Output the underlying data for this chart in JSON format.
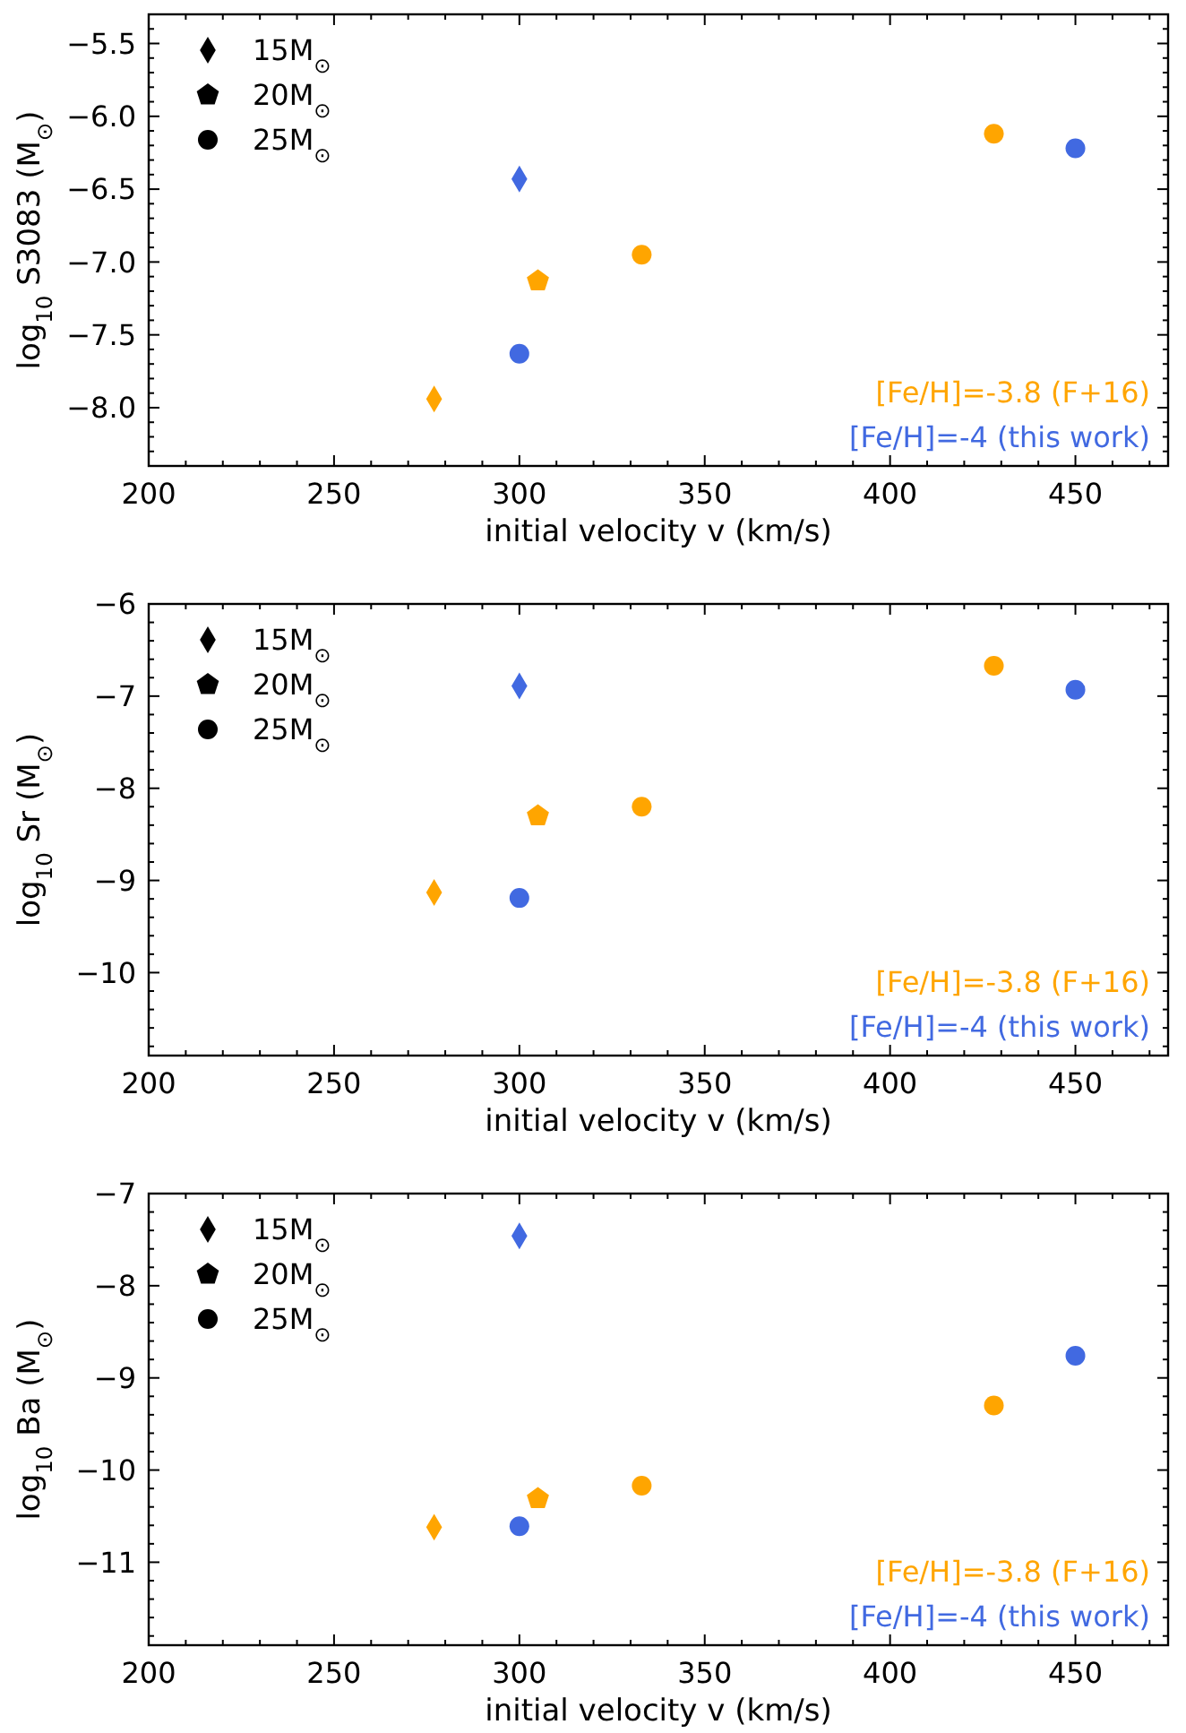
{
  "chart_data": [
    {
      "type": "scatter",
      "xlabel": "initial velocity v (km/s)",
      "ylabel": "log$_{10}$ S3083 (M$_{⊙}$)",
      "xlim": [
        200,
        475
      ],
      "ylim": [
        -8.4,
        -5.3
      ],
      "xticks": [
        200,
        {
          "value": 210,
          "label": null
        },
        {
          "value": 220,
          "label": null
        },
        {
          "value": 230,
          "label": null
        },
        {
          "value": 240,
          "label": null
        },
        250,
        {
          "value": 260,
          "label": null
        },
        {
          "value": 270,
          "label": null
        },
        {
          "value": 280,
          "label": null
        },
        {
          "value": 290,
          "label": null
        },
        300,
        {
          "value": 310,
          "label": null
        },
        {
          "value": 320,
          "label": null
        },
        {
          "value": 330,
          "label": null
        },
        {
          "value": 340,
          "label": null
        },
        350,
        {
          "value": 360,
          "label": null
        },
        {
          "value": 370,
          "label": null
        },
        {
          "value": 380,
          "label": null
        },
        {
          "value": 390,
          "label": null
        },
        400,
        {
          "value": 410,
          "label": null
        },
        {
          "value": 420,
          "label": null
        },
        {
          "value": 430,
          "label": null
        },
        {
          "value": 440,
          "label": null
        },
        450,
        {
          "value": 460,
          "label": null
        },
        {
          "value": 470,
          "label": null
        }
      ],
      "yticks": [
        {
          "value": -8.4,
          "label": null
        },
        {
          "value": -8.3,
          "label": null
        },
        {
          "value": -8.2,
          "label": null
        },
        {
          "value": -8.1,
          "label": null
        },
        {
          "value": -8.0,
          "label": "−8.0"
        },
        {
          "value": -7.9,
          "label": null
        },
        {
          "value": -7.8,
          "label": null
        },
        {
          "value": -7.7,
          "label": null
        },
        {
          "value": -7.6,
          "label": null
        },
        {
          "value": -7.5,
          "label": "−7.5"
        },
        {
          "value": -7.4,
          "label": null
        },
        {
          "value": -7.3,
          "label": null
        },
        {
          "value": -7.2,
          "label": null
        },
        {
          "value": -7.1,
          "label": null
        },
        {
          "value": -7.0,
          "label": "−7.0"
        },
        {
          "value": -6.9,
          "label": null
        },
        {
          "value": -6.8,
          "label": null
        },
        {
          "value": -6.7,
          "label": null
        },
        {
          "value": -6.6,
          "label": null
        },
        {
          "value": -6.5,
          "label": "−6.5"
        },
        {
          "value": -6.4,
          "label": null
        },
        {
          "value": -6.3,
          "label": null
        },
        {
          "value": -6.2,
          "label": null
        },
        {
          "value": -6.1,
          "label": null
        },
        {
          "value": -6.0,
          "label": "−6.0"
        },
        {
          "value": -5.9,
          "label": null
        },
        {
          "value": -5.8,
          "label": null
        },
        {
          "value": -5.7,
          "label": null
        },
        {
          "value": -5.6,
          "label": null
        },
        {
          "value": -5.5,
          "label": "−5.5"
        },
        {
          "value": -5.4,
          "label": null
        },
        {
          "value": -5.3,
          "label": null
        }
      ],
      "annotations": [
        "15M$_{⊙}$",
        "20M$_{⊙}$",
        "25M$_{⊙}$",
        "[Fe/H]=-3.8 (F+16)",
        "[Fe/H]=-4 (this work)"
      ],
      "series": [
        {
          "marker": "diamond",
          "x": [
            277,
            300
          ],
          "values": [
            -7.94,
            -6.43
          ],
          "colors": [
            "#ffa500",
            "#4169e1"
          ]
        },
        {
          "x": [
            305
          ],
          "values": [
            -7.13
          ],
          "colors": [
            "#ffa500"
          ]
        },
        {
          "marker": "circle",
          "x": [
            333,
            428,
            300,
            450
          ],
          "values": [
            -6.95,
            -6.12,
            -7.63,
            -6.22
          ],
          "colors": [
            "#ffa500",
            "#ffa500",
            "#4169e1",
            "#4169e1"
          ]
        }
      ]
    },
    {
      "type": "scatter",
      "xlabel": "initial velocity v (km/s)",
      "ylabel": "log$_{10}$ Sr (M$_{⊙}$)",
      "xlim": [
        200,
        475
      ],
      "ylim": [
        -10.9,
        -6
      ],
      "xticks": [
        200,
        {
          "value": 210,
          "label": null
        },
        {
          "value": 220,
          "label": null
        },
        {
          "value": 230,
          "label": null
        },
        {
          "value": 240,
          "label": null
        },
        250,
        {
          "value": 260,
          "label": null
        },
        {
          "value": 270,
          "label": null
        },
        {
          "value": 280,
          "label": null
        },
        {
          "value": 290,
          "label": null
        },
        300,
        {
          "value": 310,
          "label": null
        },
        {
          "value": 320,
          "label": null
        },
        {
          "value": 330,
          "label": null
        },
        {
          "value": 340,
          "label": null
        },
        350,
        {
          "value": 360,
          "label": null
        },
        {
          "value": 370,
          "label": null
        },
        {
          "value": 380,
          "label": null
        },
        {
          "value": 390,
          "label": null
        },
        400,
        {
          "value": 410,
          "label": null
        },
        {
          "value": 420,
          "label": null
        },
        {
          "value": 430,
          "label": null
        },
        {
          "value": 440,
          "label": null
        },
        450,
        {
          "value": 460,
          "label": null
        },
        {
          "value": 470,
          "label": null
        }
      ],
      "yticks": [
        {
          "value": -10.8,
          "label": null
        },
        {
          "value": -10.6,
          "label": null
        },
        {
          "value": -10.4,
          "label": null
        },
        {
          "value": -10.2,
          "label": null
        },
        {
          "value": -10,
          "label": "−10"
        },
        {
          "value": -9.8,
          "label": null
        },
        {
          "value": -9.6,
          "label": null
        },
        {
          "value": -9.4,
          "label": null
        },
        {
          "value": -9.2,
          "label": null
        },
        {
          "value": -9,
          "label": "−9"
        },
        {
          "value": -8.8,
          "label": null
        },
        {
          "value": -8.6,
          "label": null
        },
        {
          "value": -8.4,
          "label": null
        },
        {
          "value": -8.2,
          "label": null
        },
        {
          "value": -8,
          "label": "−8"
        },
        {
          "value": -7.8,
          "label": null
        },
        {
          "value": -7.6,
          "label": null
        },
        {
          "value": -7.4,
          "label": null
        },
        {
          "value": -7.2,
          "label": null
        },
        {
          "value": -7,
          "label": "−7"
        },
        {
          "value": -6.8,
          "label": null
        },
        {
          "value": -6.6,
          "label": null
        },
        {
          "value": -6.4,
          "label": null
        },
        {
          "value": -6.2,
          "label": null
        },
        {
          "value": -6,
          "label": "−6"
        }
      ],
      "annotations": [
        "15M$_{⊙}$",
        "20M$_{⊙}$",
        "25M$_{⊙}$",
        "[Fe/H]=-3.8 (F+16)",
        "[Fe/H]=-4 (this work)"
      ],
      "series": [
        {
          "marker": "diamond",
          "x": [
            277,
            300
          ],
          "values": [
            -9.13,
            -6.89
          ],
          "colors": [
            "#ffa500",
            "#4169e1"
          ]
        },
        {
          "x": [
            305
          ],
          "values": [
            -8.3
          ],
          "colors": [
            "#ffa500"
          ]
        },
        {
          "marker": "circle",
          "x": [
            333,
            428,
            300,
            450
          ],
          "values": [
            -8.2,
            -6.67,
            -9.19,
            -6.93
          ],
          "colors": [
            "#ffa500",
            "#ffa500",
            "#4169e1",
            "#4169e1"
          ]
        }
      ]
    },
    {
      "type": "scatter",
      "xlabel": "initial velocity v (km/s)",
      "ylabel": "log$_{10}$ Ba (M$_{⊙}$)",
      "xlim": [
        200,
        475
      ],
      "ylim": [
        -11.9,
        -7
      ],
      "xticks": [
        200,
        {
          "value": 210,
          "label": null
        },
        {
          "value": 220,
          "label": null
        },
        {
          "value": 230,
          "label": null
        },
        {
          "value": 240,
          "label": null
        },
        250,
        {
          "value": 260,
          "label": null
        },
        {
          "value": 270,
          "label": null
        },
        {
          "value": 280,
          "label": null
        },
        {
          "value": 290,
          "label": null
        },
        300,
        {
          "value": 310,
          "label": null
        },
        {
          "value": 320,
          "label": null
        },
        {
          "value": 330,
          "label": null
        },
        {
          "value": 340,
          "label": null
        },
        350,
        {
          "value": 360,
          "label": null
        },
        {
          "value": 370,
          "label": null
        },
        {
          "value": 380,
          "label": null
        },
        {
          "value": 390,
          "label": null
        },
        400,
        {
          "value": 410,
          "label": null
        },
        {
          "value": 420,
          "label": null
        },
        {
          "value": 430,
          "label": null
        },
        {
          "value": 440,
          "label": null
        },
        450,
        {
          "value": 460,
          "label": null
        },
        {
          "value": 470,
          "label": null
        }
      ],
      "yticks": [
        {
          "value": -11.8,
          "label": null
        },
        {
          "value": -11.6,
          "label": null
        },
        {
          "value": -11.4,
          "label": null
        },
        {
          "value": -11.2,
          "label": null
        },
        {
          "value": -11,
          "label": "−11"
        },
        {
          "value": -10.8,
          "label": null
        },
        {
          "value": -10.6,
          "label": null
        },
        {
          "value": -10.4,
          "label": null
        },
        {
          "value": -10.2,
          "label": null
        },
        {
          "value": -10,
          "label": "−10"
        },
        {
          "value": -9.8,
          "label": null
        },
        {
          "value": -9.6,
          "label": null
        },
        {
          "value": -9.4,
          "label": null
        },
        {
          "value": -9.2,
          "label": null
        },
        {
          "value": -9,
          "label": "−9"
        },
        {
          "value": -8.8,
          "label": null
        },
        {
          "value": -8.6,
          "label": null
        },
        {
          "value": -8.4,
          "label": null
        },
        {
          "value": -8.2,
          "label": null
        },
        {
          "value": -8,
          "label": "−8"
        },
        {
          "value": -7.8,
          "label": null
        },
        {
          "value": -7.6,
          "label": null
        },
        {
          "value": -7.4,
          "label": null
        },
        {
          "value": -7.2,
          "label": null
        },
        {
          "value": -7,
          "label": "−7"
        }
      ],
      "annotations": [
        "15M$_{⊙}$",
        "20M$_{⊙}$",
        "25M$_{⊙}$",
        "[Fe/H]=-3.8 (F+16)",
        "[Fe/H]=-4 (this work)"
      ],
      "series": [
        {
          "marker": "diamond",
          "x": [
            277,
            300
          ],
          "values": [
            -10.62,
            -7.46
          ],
          "colors": [
            "#ffa500",
            "#4169e1"
          ]
        },
        {
          "x": [
            305
          ],
          "values": [
            -10.31
          ],
          "colors": [
            "#ffa500"
          ]
        },
        {
          "marker": "circle",
          "x": [
            333,
            428,
            300,
            450
          ],
          "values": [
            -10.17,
            -9.3,
            -10.61,
            -8.76
          ],
          "colors": [
            "#ffa500",
            "#ffa500",
            "#4169e1",
            "#4169e1"
          ]
        }
      ]
    }
  ]
}
